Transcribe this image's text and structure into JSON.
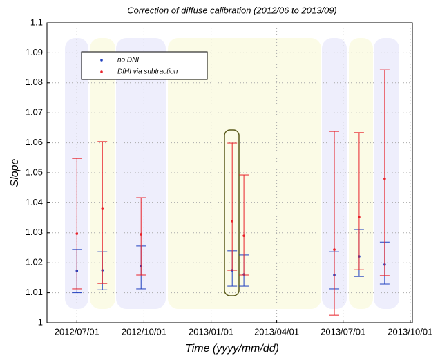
{
  "chart_data": {
    "type": "errorbar",
    "title": "Correction of diffuse calibration (2012/06 to 2013/09)",
    "x_label": "Time (yyyy/mm/dd)",
    "y_label": "Slope",
    "x": [
      "2012/07/01",
      "2012/08/05",
      "2012/09/27",
      "2013/01/30",
      "2013/02/15",
      "2013/06/19",
      "2013/07/23",
      "2013/08/27"
    ],
    "series": [
      {
        "name": "no DNI",
        "color": "#1f3fbf",
        "values": [
          1.0173,
          1.0175,
          1.0189,
          1.0175,
          1.0161,
          1.0159,
          1.0221,
          1.0194
        ],
        "low": [
          1.01,
          1.011,
          1.0113,
          1.0122,
          1.0122,
          1.0113,
          1.0154,
          1.0129
        ],
        "high": [
          1.0244,
          1.0237,
          1.0256,
          1.024,
          1.0226,
          1.0237,
          1.0311,
          1.0269
        ]
      },
      {
        "name": "DfHI via subtraction",
        "color": "#e8222a",
        "values": [
          1.0297,
          1.038,
          1.0295,
          1.0339,
          1.029,
          1.0244,
          1.0352,
          1.048
        ],
        "low": [
          1.0113,
          1.0131,
          1.0159,
          1.0175,
          1.0159,
          1.0025,
          1.0177,
          1.0157
        ],
        "high": [
          1.0548,
          1.0604,
          1.0417,
          1.0599,
          1.0493,
          1.0638,
          1.0634,
          1.0843
        ]
      }
    ],
    "xlim": [
      "2012/05/21",
      "2013/10/04"
    ],
    "xticks": [
      "2012/07/01",
      "2012/10/01",
      "2013/01/01",
      "2013/04/01",
      "2013/07/01",
      "2013/10/01"
    ],
    "ylim": [
      1,
      1.1
    ],
    "yticks": [
      1,
      1.01,
      1.02,
      1.03,
      1.04,
      1.05,
      1.06,
      1.07,
      1.08,
      1.09,
      1.1
    ],
    "grid": true,
    "legend": "upper-left"
  }
}
